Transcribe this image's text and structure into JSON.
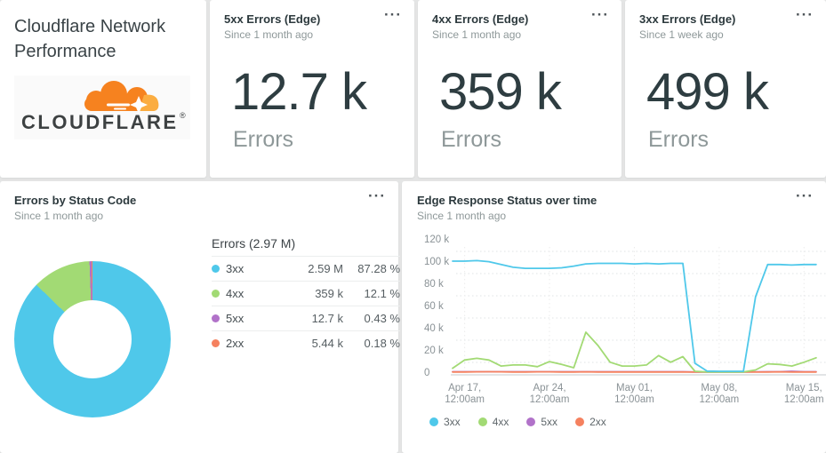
{
  "icons": {
    "menu": "···"
  },
  "dashboard": {
    "title_card": {
      "title": "Cloudflare Network Performance",
      "logo_wordmark": "CLOUDFLARE"
    },
    "stat_cards": [
      {
        "title": "5xx Errors (Edge)",
        "subtitle": "Since 1 month ago",
        "value": "12.7 k",
        "label": "Errors"
      },
      {
        "title": "4xx Errors (Edge)",
        "subtitle": "Since 1 month ago",
        "value": "359 k",
        "label": "Errors"
      },
      {
        "title": "3xx Errors (Edge)",
        "subtitle": "Since 1 week ago",
        "value": "499 k",
        "label": "Errors"
      }
    ],
    "pie_card": {
      "title": "Errors by Status Code",
      "subtitle": "Since 1 month ago"
    },
    "line_card": {
      "title": "Edge Response Status over time",
      "subtitle": "Since 1 month ago"
    }
  },
  "colors": {
    "c3xx": "#4FC8EA",
    "c4xx": "#A2DA74",
    "c5xx": "#B172C9",
    "c2xx": "#F5815F",
    "cloudflare_orange": "#F6821F",
    "cloudflare_light_orange": "#FBAD41"
  },
  "chart_data": [
    {
      "type": "pie",
      "title": "Errors by Status Code",
      "subtitle": "Since 1 month ago",
      "total_label": "Errors (2.97 M)",
      "donut": true,
      "legend_position": "right",
      "slices": [
        {
          "name": "3xx",
          "value": "2.59 M",
          "pct": "87.28 %",
          "pct_num": 87.28,
          "color": "#4FC8EA"
        },
        {
          "name": "4xx",
          "value": "359 k",
          "pct": "12.1 %",
          "pct_num": 12.1,
          "color": "#A2DA74"
        },
        {
          "name": "5xx",
          "value": "12.7 k",
          "pct": "0.43 %",
          "pct_num": 0.43,
          "color": "#B172C9"
        },
        {
          "name": "2xx",
          "value": "5.44 k",
          "pct": "0.18 %",
          "pct_num": 0.18,
          "color": "#F5815F"
        }
      ]
    },
    {
      "type": "line",
      "title": "Edge Response Status over time",
      "subtitle": "Since 1 month ago",
      "grid": "dotted",
      "legend_position": "bottom",
      "ylabel": "",
      "xlabel": "",
      "y_unit": "errors (thousands)",
      "ylim_k": [
        0,
        120
      ],
      "y_ticks": [
        "120 k",
        "100 k",
        "80 k",
        "60 k",
        "40 k",
        "20 k",
        "0"
      ],
      "x_unit": "day",
      "x_start": "Apr 16, 12:00am",
      "x_ticks": [
        {
          "label": "Apr 17,",
          "sublabel": "12:00am",
          "day_index": 1
        },
        {
          "label": "Apr 24,",
          "sublabel": "12:00am",
          "day_index": 8
        },
        {
          "label": "May 01,",
          "sublabel": "12:00am",
          "day_index": 15
        },
        {
          "label": "May 08,",
          "sublabel": "12:00am",
          "day_index": 22
        },
        {
          "label": "May 15,",
          "sublabel": "12:00am",
          "day_index": 29
        }
      ],
      "series": [
        {
          "name": "3xx",
          "color": "#4FC8EA",
          "values_k": [
            100,
            100,
            100.5,
            99.5,
            97,
            94.5,
            93.5,
            93.5,
            93.5,
            94,
            95.5,
            97.5,
            98,
            98,
            98,
            97.5,
            98,
            97.5,
            98,
            98,
            8,
            1,
            0.8,
            0.8,
            0.8,
            68,
            97,
            97,
            96.5,
            97,
            97
          ]
        },
        {
          "name": "4xx",
          "color": "#A2DA74",
          "values_k": [
            3.5,
            11,
            12.5,
            11,
            5.5,
            6.5,
            6.5,
            5,
            9.5,
            7,
            4,
            36,
            24,
            9,
            5.5,
            5.5,
            6.5,
            15,
            9,
            14,
            0.8,
            0.2,
            0.2,
            0.2,
            0.2,
            2,
            7.5,
            7,
            5.5,
            9,
            13
          ]
        },
        {
          "name": "5xx",
          "color": "#B172C9",
          "values_k": [
            0.4,
            0.4,
            0.4,
            0.4,
            0.4,
            0.4,
            0.4,
            0.4,
            0.4,
            0.4,
            0.4,
            0.4,
            0.4,
            0.4,
            0.4,
            0.4,
            0.4,
            0.4,
            0.4,
            0.4,
            0.2,
            0.1,
            0.1,
            0.1,
            0.1,
            0.3,
            0.4,
            0.4,
            0.8,
            0.4,
            0.4
          ]
        },
        {
          "name": "2xx",
          "color": "#F5815F",
          "values_k": [
            0.2,
            0.2,
            0.3,
            0.4,
            0.3,
            0.2,
            0.2,
            0.3,
            0.3,
            0.2,
            0.2,
            0.3,
            0.2,
            0.2,
            0.2,
            0.2,
            0.2,
            0.2,
            0.2,
            0.2,
            0.1,
            0.1,
            0.1,
            0.1,
            0.1,
            0.1,
            0.2,
            0.3,
            0.2,
            0.2,
            0.2
          ]
        }
      ]
    }
  ]
}
